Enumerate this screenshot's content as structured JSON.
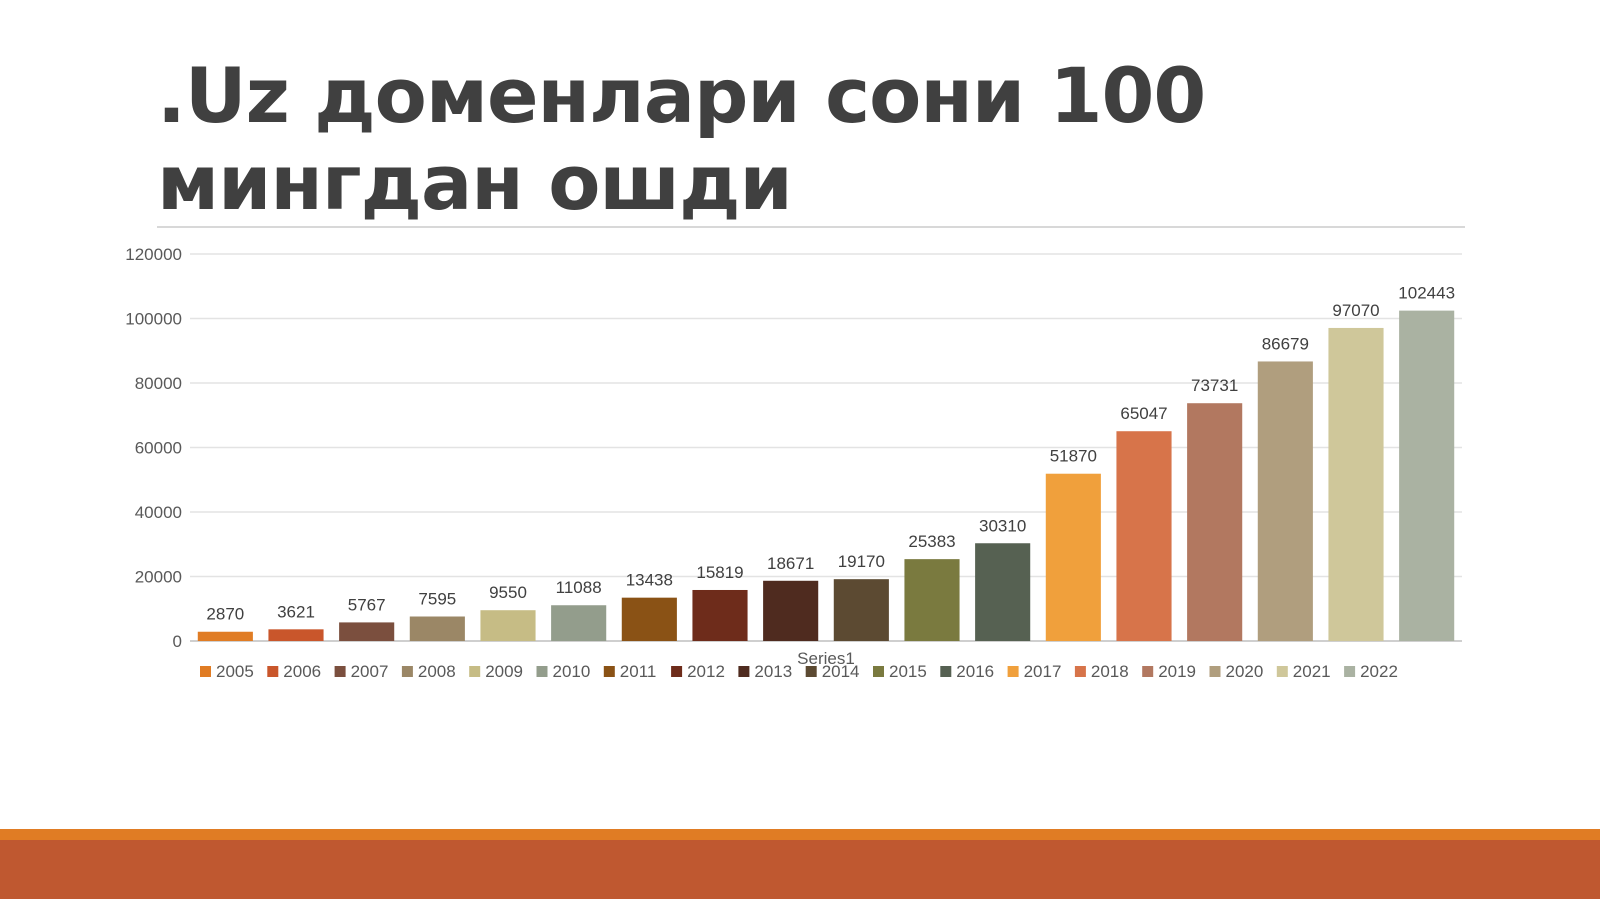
{
  "slide": {
    "title": ".Uz доменлари сони 100 мингдан ошди"
  },
  "chart_data": {
    "type": "bar",
    "title": "",
    "xlabel": "Series1",
    "ylabel": "",
    "ylim": [
      0,
      120000
    ],
    "yticks": [
      0,
      20000,
      40000,
      60000,
      80000,
      100000,
      120000
    ],
    "grid": true,
    "legend": "bottom",
    "categories": [
      "2005",
      "2006",
      "2007",
      "2008",
      "2009",
      "2010",
      "2011",
      "2012",
      "2013",
      "2014",
      "2015",
      "2016",
      "2017",
      "2018",
      "2019",
      "2020",
      "2021",
      "2022"
    ],
    "series": [
      {
        "name": "Series1",
        "values": [
          2870,
          3621,
          5767,
          7595,
          9550,
          11088,
          13438,
          15819,
          18671,
          19170,
          25383,
          30310,
          51870,
          65047,
          73731,
          86679,
          97070,
          102443
        ]
      }
    ],
    "colors": [
      "#e07c24",
      "#c9562b",
      "#7b4f3e",
      "#9b8766",
      "#c6bc85",
      "#939d8c",
      "#8a5215",
      "#6e2c1b",
      "#4f2b1f",
      "#5c4a32",
      "#7a7a3f",
      "#566152",
      "#f0a03c",
      "#d7744a",
      "#b27860",
      "#b09e7e",
      "#cfc79a",
      "#aab2a2"
    ]
  }
}
